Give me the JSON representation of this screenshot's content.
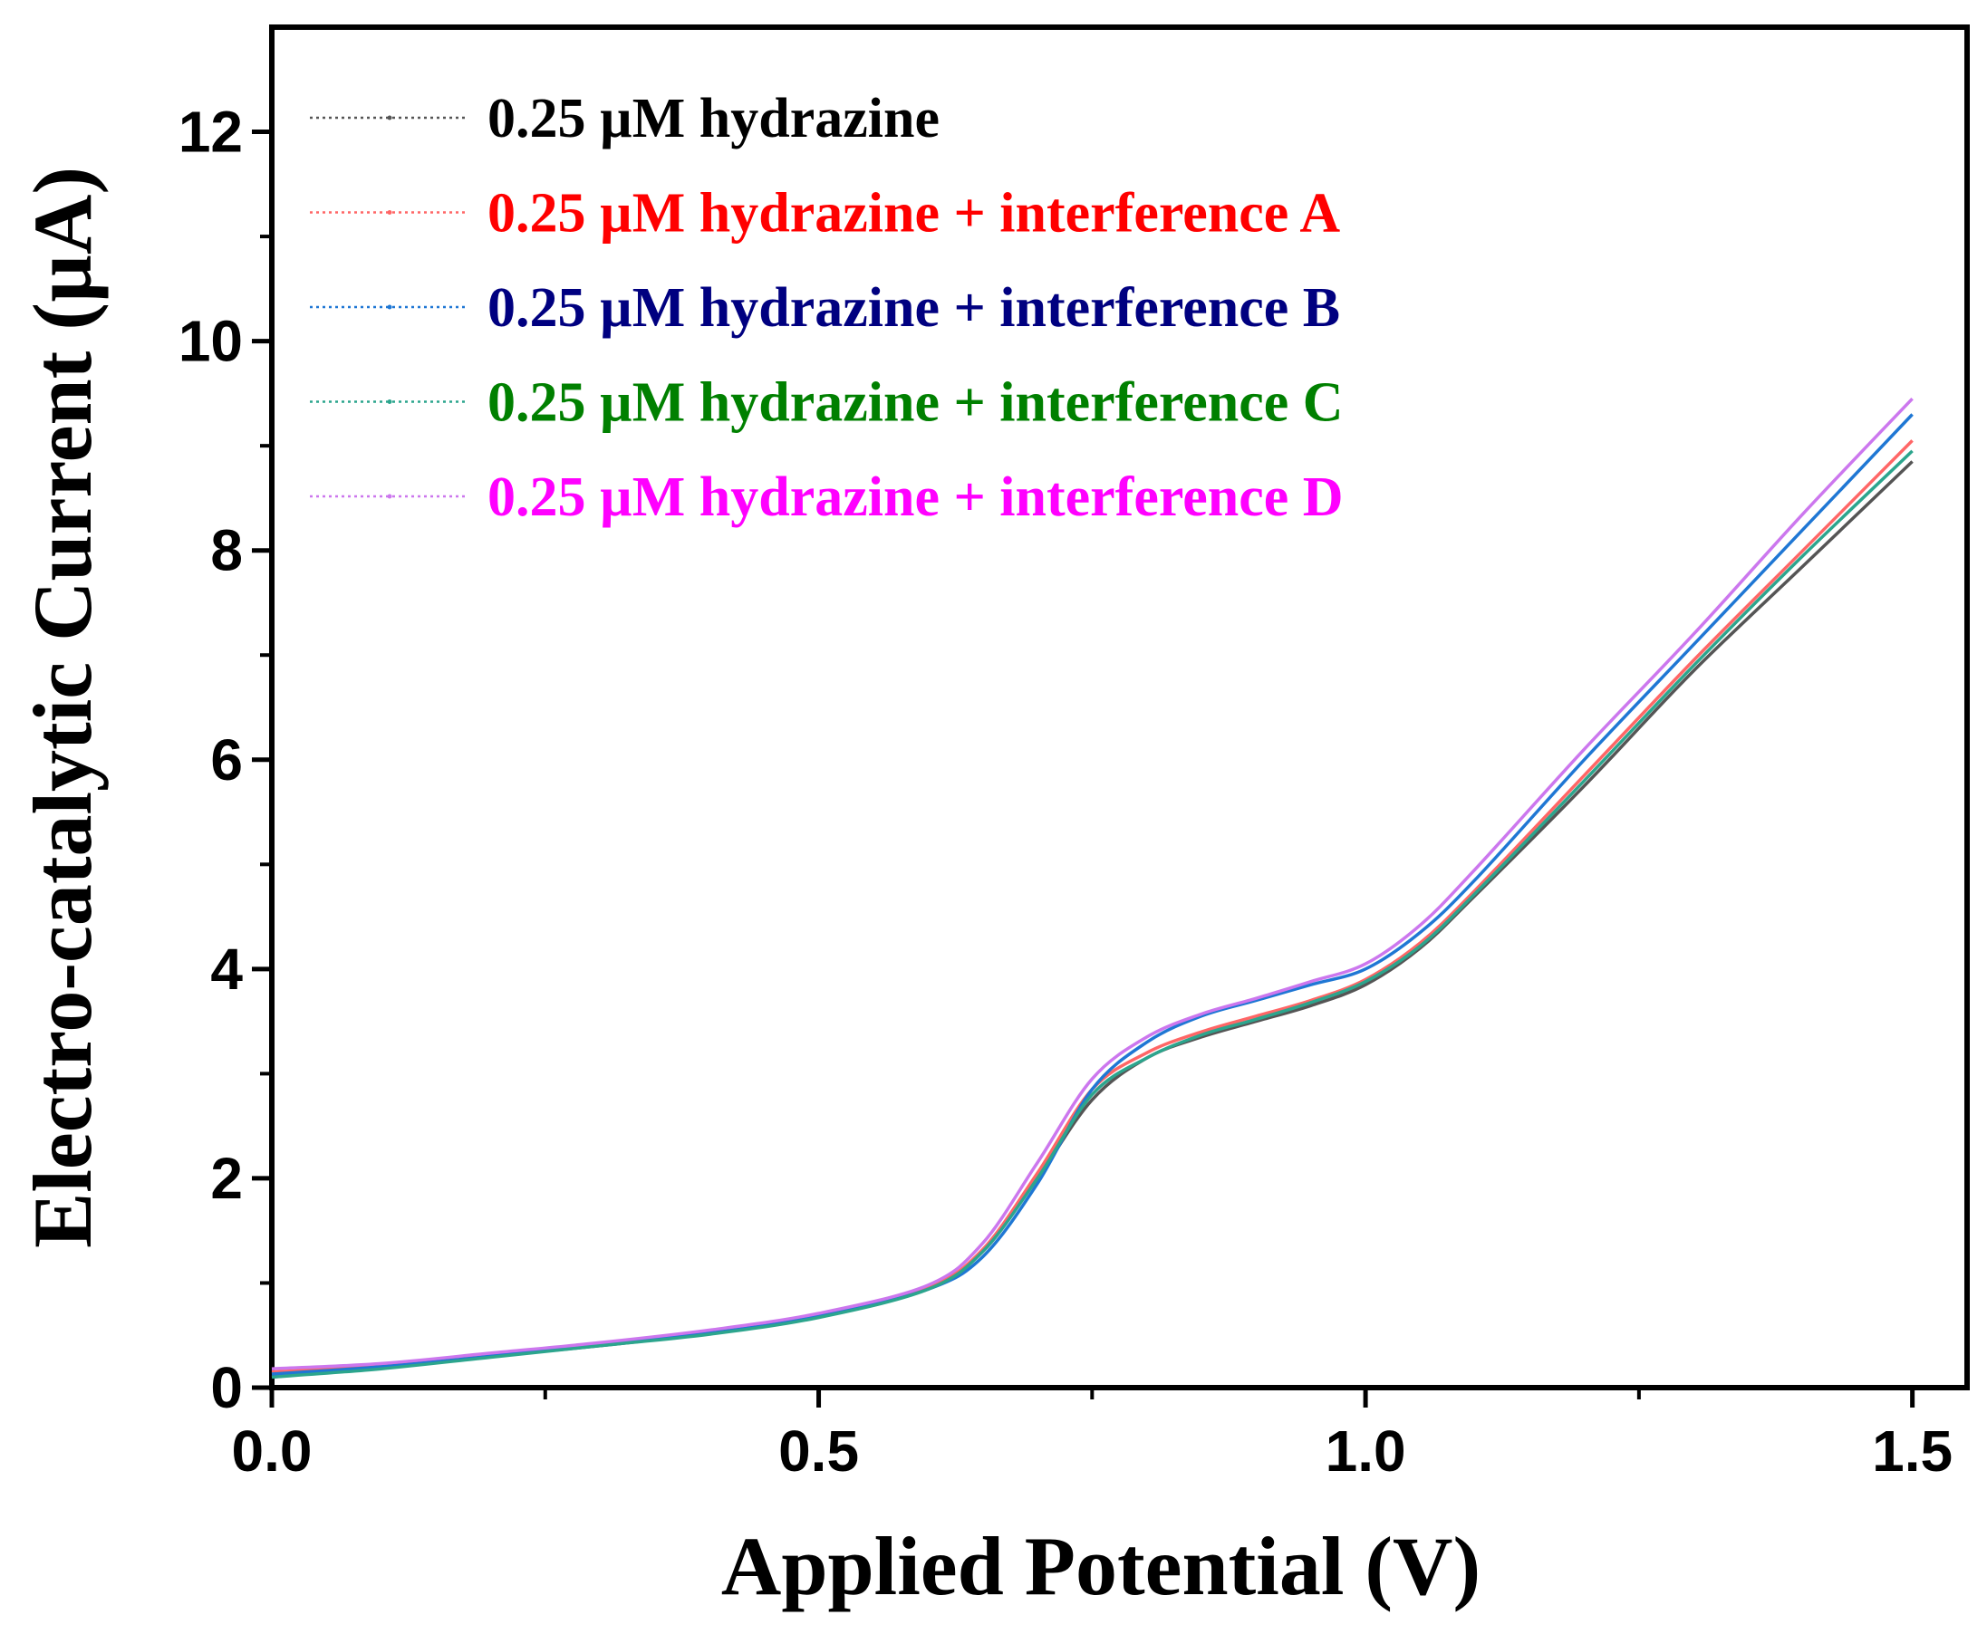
{
  "chart_data": {
    "type": "line",
    "title": "",
    "xlabel": "Applied Potential (V)",
    "ylabel": "Electro-catalytic Current (µA)",
    "xlim": [
      0,
      1.55
    ],
    "ylim": [
      0,
      13
    ],
    "xticks": [
      0.0,
      0.5,
      1.0,
      1.5
    ],
    "xtick_labels": [
      "0.0",
      "0.5",
      "1.0",
      "1.5"
    ],
    "yticks": [
      0,
      2,
      4,
      6,
      8,
      10,
      12
    ],
    "ytick_labels": [
      "0",
      "2",
      "4",
      "6",
      "8",
      "10",
      "12"
    ],
    "legend_position": "top-left",
    "grid": false,
    "x": [
      0.0,
      0.1,
      0.2,
      0.3,
      0.4,
      0.5,
      0.6,
      0.65,
      0.7,
      0.75,
      0.8,
      0.85,
      0.9,
      0.95,
      1.0,
      1.05,
      1.1,
      1.2,
      1.3,
      1.4,
      1.5
    ],
    "series": [
      {
        "name": "0.25 µM hydrazine",
        "color": "#000000",
        "line_color": "#555555",
        "values": [
          0.13,
          0.2,
          0.3,
          0.4,
          0.52,
          0.68,
          0.95,
          1.3,
          2.0,
          2.75,
          3.15,
          3.35,
          3.5,
          3.65,
          3.85,
          4.2,
          4.7,
          5.75,
          6.85,
          7.85,
          8.85
        ]
      },
      {
        "name": "0.25 µM hydrazine + interference A",
        "color": "#ff0000",
        "line_color": "#ff6666",
        "values": [
          0.15,
          0.21,
          0.31,
          0.42,
          0.53,
          0.69,
          0.96,
          1.32,
          2.05,
          2.85,
          3.2,
          3.4,
          3.55,
          3.7,
          3.9,
          4.25,
          4.75,
          5.85,
          6.95,
          8.0,
          9.05
        ]
      },
      {
        "name": "0.25 µM hydrazine + interference B",
        "color": "#000080",
        "line_color": "#1f77d4",
        "values": [
          0.13,
          0.2,
          0.3,
          0.41,
          0.52,
          0.68,
          0.94,
          1.25,
          1.95,
          2.85,
          3.3,
          3.55,
          3.7,
          3.85,
          4.0,
          4.35,
          4.85,
          6.0,
          7.1,
          8.2,
          9.3
        ]
      },
      {
        "name": "0.25 µM hydrazine + interference C",
        "color": "#008000",
        "line_color": "#2ca58d",
        "values": [
          0.1,
          0.18,
          0.29,
          0.4,
          0.51,
          0.67,
          0.94,
          1.3,
          2.0,
          2.8,
          3.15,
          3.37,
          3.52,
          3.68,
          3.88,
          4.22,
          4.72,
          5.8,
          6.9,
          7.95,
          8.95
        ]
      },
      {
        "name": "0.25 µM hydrazine + interference D",
        "color": "#ff00ff",
        "line_color": "#cc77ee",
        "values": [
          0.18,
          0.23,
          0.33,
          0.43,
          0.55,
          0.71,
          0.98,
          1.38,
          2.15,
          2.95,
          3.35,
          3.57,
          3.72,
          3.88,
          4.05,
          4.42,
          4.95,
          6.1,
          7.2,
          8.35,
          9.45
        ]
      }
    ]
  }
}
